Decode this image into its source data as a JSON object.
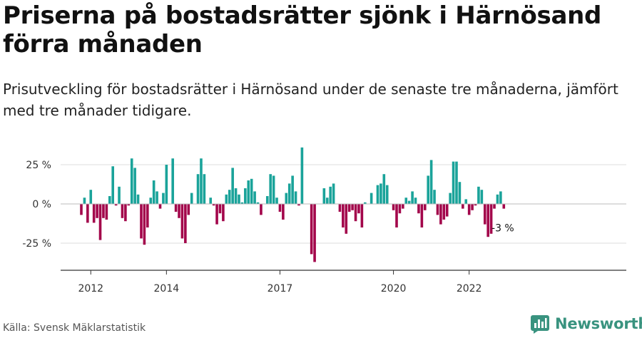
{
  "header": {
    "title": "Priserna på bostadsrätter sjönk i Härnösand förra månaden",
    "subtitle": "Prisutveckling för bostadsrätter i Härnösand under de senaste tre månaderna, jämfört med tre månader tidigare."
  },
  "footer": {
    "source": "Källa: Svensk Mäklarstatistik",
    "brand": "Newsworthy"
  },
  "colors": {
    "positive": "#1aa39a",
    "negative": "#a3064b",
    "grid": "#dddddd",
    "axis": "#333333",
    "brand": "#39937f"
  },
  "chart_data": {
    "type": "bar",
    "title": "Priserna på bostadsrätter sjönk i Härnösand förra månaden",
    "subtitle": "Prisutveckling för bostadsrätter i Härnösand under de senaste tre månaderna, jämfört med tre månader tidigare.",
    "unit": "%",
    "start_month": "2011-10",
    "ylim": [
      -40,
      38
    ],
    "y_ticks": [
      {
        "value": 25,
        "label": "25 %"
      },
      {
        "value": 0,
        "label": "0 %"
      },
      {
        "value": -25,
        "label": "-25 %"
      }
    ],
    "x_ticks": [
      {
        "month": "2012-01",
        "label": "2012"
      },
      {
        "month": "2014-01",
        "label": "2014"
      },
      {
        "month": "2017-01",
        "label": "2017"
      },
      {
        "month": "2020-01",
        "label": "2020"
      },
      {
        "month": "2022-01",
        "label": "2022"
      }
    ],
    "grid": true,
    "values": [
      -7,
      4,
      -12,
      9,
      -12,
      -9,
      -23,
      -9,
      -10,
      5,
      24,
      -1,
      11,
      -9,
      -11,
      -1,
      29,
      23,
      6,
      -22,
      -26,
      -15,
      4,
      15,
      8,
      -3,
      7,
      25,
      0,
      29,
      -5,
      -9,
      -22,
      -25,
      -7,
      7,
      0,
      19,
      29,
      19,
      0,
      4,
      -1,
      -13,
      -6,
      -11,
      6,
      9,
      23,
      10,
      6,
      1,
      10,
      15,
      16,
      8,
      1,
      -7,
      0,
      5,
      19,
      18,
      4,
      -5,
      -10,
      7,
      13,
      18,
      8,
      -1,
      36,
      0,
      0,
      -32,
      -37,
      0,
      0,
      10,
      4,
      11,
      13,
      0,
      -5,
      -15,
      -19,
      -5,
      -4,
      -11,
      -6,
      -15,
      1,
      0,
      7,
      0,
      12,
      13,
      19,
      12,
      0,
      -4,
      -15,
      -6,
      -3,
      4,
      2,
      8,
      4,
      -6,
      -15,
      -4,
      18,
      28,
      9,
      -7,
      -13,
      -10,
      -8,
      7,
      27,
      27,
      14,
      -3,
      3,
      -7,
      -4,
      -1,
      11,
      9,
      -13,
      -21,
      -19,
      -3,
      6,
      8,
      -3
    ],
    "annotation": {
      "index": 131,
      "label": "-3 %"
    }
  }
}
